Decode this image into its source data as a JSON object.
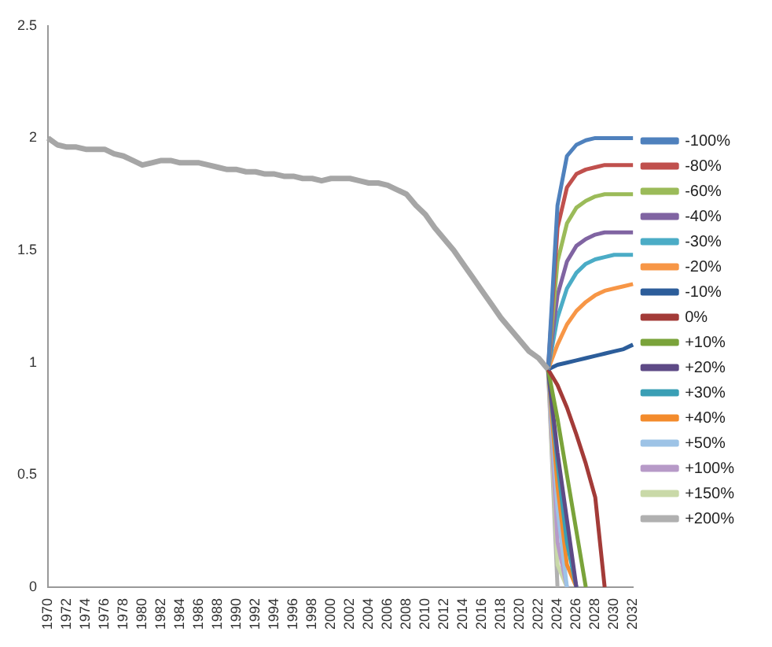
{
  "chart_data": {
    "type": "line",
    "categories": [
      "1970",
      null,
      "1972",
      null,
      "1974",
      null,
      "1976",
      null,
      "1978",
      null,
      "1980",
      null,
      "1982",
      null,
      "1984",
      null,
      "1986",
      null,
      "1988",
      null,
      "1990",
      null,
      "1992",
      null,
      "1994",
      null,
      "1996",
      null,
      "1998",
      null,
      "2000",
      null,
      "2002",
      null,
      "2004",
      null,
      "2006",
      null,
      "2008",
      null,
      "2010",
      null,
      "2012",
      null,
      "2014",
      null,
      "2016",
      null,
      "2018",
      null,
      "2020",
      null,
      "2022",
      null,
      "2024",
      null,
      "2026",
      null,
      "2028",
      null,
      "2030",
      null,
      "2032"
    ],
    "ylim": [
      0,
      2.5
    ],
    "yticks": [
      0,
      0.5,
      1,
      1.5,
      2,
      2.5
    ],
    "grid": false,
    "legend": "right",
    "marker": "none",
    "line_style": "solid",
    "series": [
      {
        "color": "#a6a6a6",
        "values": [
          2.0,
          1.97,
          1.96,
          1.96,
          1.95,
          1.95,
          1.95,
          1.93,
          1.92,
          1.9,
          1.88,
          1.89,
          1.9,
          1.9,
          1.89,
          1.89,
          1.89,
          1.88,
          1.87,
          1.86,
          1.86,
          1.85,
          1.85,
          1.84,
          1.84,
          1.83,
          1.83,
          1.82,
          1.82,
          1.81,
          1.82,
          1.82,
          1.82,
          1.81,
          1.8,
          1.8,
          1.79,
          1.77,
          1.75,
          1.7,
          1.66,
          1.6,
          1.55,
          1.5,
          1.44,
          1.38,
          1.32,
          1.26,
          1.2,
          1.15,
          1.1,
          1.05,
          1.02,
          0.97,
          null,
          null,
          null,
          null,
          null,
          null,
          null,
          null,
          null
        ]
      },
      {
        "name": "-100%",
        "color": "#4f81bd",
        "values": [
          null,
          null,
          null,
          null,
          null,
          null,
          null,
          null,
          null,
          null,
          null,
          null,
          null,
          null,
          null,
          null,
          null,
          null,
          null,
          null,
          null,
          null,
          null,
          null,
          null,
          null,
          null,
          null,
          null,
          null,
          null,
          null,
          null,
          null,
          null,
          null,
          null,
          null,
          null,
          null,
          null,
          null,
          null,
          null,
          null,
          null,
          null,
          null,
          null,
          null,
          null,
          null,
          null,
          0.97,
          1.7,
          1.92,
          1.97,
          1.99,
          2.0,
          2.0,
          2.0,
          2.0,
          2.0
        ]
      },
      {
        "name": "-80%",
        "color": "#c0504d",
        "values": [
          null,
          null,
          null,
          null,
          null,
          null,
          null,
          null,
          null,
          null,
          null,
          null,
          null,
          null,
          null,
          null,
          null,
          null,
          null,
          null,
          null,
          null,
          null,
          null,
          null,
          null,
          null,
          null,
          null,
          null,
          null,
          null,
          null,
          null,
          null,
          null,
          null,
          null,
          null,
          null,
          null,
          null,
          null,
          null,
          null,
          null,
          null,
          null,
          null,
          null,
          null,
          null,
          null,
          0.97,
          1.6,
          1.78,
          1.84,
          1.86,
          1.87,
          1.88,
          1.88,
          1.88,
          1.88
        ]
      },
      {
        "name": "-60%",
        "color": "#9bbb59",
        "values": [
          null,
          null,
          null,
          null,
          null,
          null,
          null,
          null,
          null,
          null,
          null,
          null,
          null,
          null,
          null,
          null,
          null,
          null,
          null,
          null,
          null,
          null,
          null,
          null,
          null,
          null,
          null,
          null,
          null,
          null,
          null,
          null,
          null,
          null,
          null,
          null,
          null,
          null,
          null,
          null,
          null,
          null,
          null,
          null,
          null,
          null,
          null,
          null,
          null,
          null,
          null,
          null,
          null,
          0.97,
          1.45,
          1.62,
          1.69,
          1.72,
          1.74,
          1.75,
          1.75,
          1.75,
          1.75
        ]
      },
      {
        "name": "-40%",
        "color": "#8064a2",
        "values": [
          null,
          null,
          null,
          null,
          null,
          null,
          null,
          null,
          null,
          null,
          null,
          null,
          null,
          null,
          null,
          null,
          null,
          null,
          null,
          null,
          null,
          null,
          null,
          null,
          null,
          null,
          null,
          null,
          null,
          null,
          null,
          null,
          null,
          null,
          null,
          null,
          null,
          null,
          null,
          null,
          null,
          null,
          null,
          null,
          null,
          null,
          null,
          null,
          null,
          null,
          null,
          null,
          null,
          0.97,
          1.3,
          1.45,
          1.52,
          1.55,
          1.57,
          1.58,
          1.58,
          1.58,
          1.58
        ]
      },
      {
        "name": "-30%",
        "color": "#4bacc6",
        "values": [
          null,
          null,
          null,
          null,
          null,
          null,
          null,
          null,
          null,
          null,
          null,
          null,
          null,
          null,
          null,
          null,
          null,
          null,
          null,
          null,
          null,
          null,
          null,
          null,
          null,
          null,
          null,
          null,
          null,
          null,
          null,
          null,
          null,
          null,
          null,
          null,
          null,
          null,
          null,
          null,
          null,
          null,
          null,
          null,
          null,
          null,
          null,
          null,
          null,
          null,
          null,
          null,
          null,
          0.97,
          1.2,
          1.33,
          1.4,
          1.44,
          1.46,
          1.47,
          1.48,
          1.48,
          1.48
        ]
      },
      {
        "name": "-20%",
        "color": "#f79646",
        "values": [
          null,
          null,
          null,
          null,
          null,
          null,
          null,
          null,
          null,
          null,
          null,
          null,
          null,
          null,
          null,
          null,
          null,
          null,
          null,
          null,
          null,
          null,
          null,
          null,
          null,
          null,
          null,
          null,
          null,
          null,
          null,
          null,
          null,
          null,
          null,
          null,
          null,
          null,
          null,
          null,
          null,
          null,
          null,
          null,
          null,
          null,
          null,
          null,
          null,
          null,
          null,
          null,
          null,
          0.97,
          1.08,
          1.17,
          1.23,
          1.27,
          1.3,
          1.32,
          1.33,
          1.34,
          1.35
        ]
      },
      {
        "name": "-10%",
        "color": "#2c5d9a",
        "values": [
          null,
          null,
          null,
          null,
          null,
          null,
          null,
          null,
          null,
          null,
          null,
          null,
          null,
          null,
          null,
          null,
          null,
          null,
          null,
          null,
          null,
          null,
          null,
          null,
          null,
          null,
          null,
          null,
          null,
          null,
          null,
          null,
          null,
          null,
          null,
          null,
          null,
          null,
          null,
          null,
          null,
          null,
          null,
          null,
          null,
          null,
          null,
          null,
          null,
          null,
          null,
          null,
          null,
          0.97,
          0.99,
          1.0,
          1.01,
          1.02,
          1.03,
          1.04,
          1.05,
          1.06,
          1.08
        ]
      },
      {
        "name": "0%",
        "color": "#a33b38",
        "values": [
          null,
          null,
          null,
          null,
          null,
          null,
          null,
          null,
          null,
          null,
          null,
          null,
          null,
          null,
          null,
          null,
          null,
          null,
          null,
          null,
          null,
          null,
          null,
          null,
          null,
          null,
          null,
          null,
          null,
          null,
          null,
          null,
          null,
          null,
          null,
          null,
          null,
          null,
          null,
          null,
          null,
          null,
          null,
          null,
          null,
          null,
          null,
          null,
          null,
          null,
          null,
          null,
          null,
          0.97,
          0.9,
          0.8,
          0.68,
          0.55,
          0.4,
          0,
          null,
          null,
          null
        ]
      },
      {
        "name": "+10%",
        "color": "#7aa33a",
        "values": [
          null,
          null,
          null,
          null,
          null,
          null,
          null,
          null,
          null,
          null,
          null,
          null,
          null,
          null,
          null,
          null,
          null,
          null,
          null,
          null,
          null,
          null,
          null,
          null,
          null,
          null,
          null,
          null,
          null,
          null,
          null,
          null,
          null,
          null,
          null,
          null,
          null,
          null,
          null,
          null,
          null,
          null,
          null,
          null,
          null,
          null,
          null,
          null,
          null,
          null,
          null,
          null,
          null,
          0.97,
          0.75,
          0.5,
          0.25,
          0,
          null,
          null,
          null,
          null,
          null
        ]
      },
      {
        "name": "+20%",
        "color": "#5e4a86",
        "values": [
          null,
          null,
          null,
          null,
          null,
          null,
          null,
          null,
          null,
          null,
          null,
          null,
          null,
          null,
          null,
          null,
          null,
          null,
          null,
          null,
          null,
          null,
          null,
          null,
          null,
          null,
          null,
          null,
          null,
          null,
          null,
          null,
          null,
          null,
          null,
          null,
          null,
          null,
          null,
          null,
          null,
          null,
          null,
          null,
          null,
          null,
          null,
          null,
          null,
          null,
          null,
          null,
          null,
          0.97,
          0.6,
          0.3,
          0,
          null,
          null,
          null,
          null,
          null,
          null
        ]
      },
      {
        "name": "+30%",
        "color": "#3a9fb5",
        "values": [
          null,
          null,
          null,
          null,
          null,
          null,
          null,
          null,
          null,
          null,
          null,
          null,
          null,
          null,
          null,
          null,
          null,
          null,
          null,
          null,
          null,
          null,
          null,
          null,
          null,
          null,
          null,
          null,
          null,
          null,
          null,
          null,
          null,
          null,
          null,
          null,
          null,
          null,
          null,
          null,
          null,
          null,
          null,
          null,
          null,
          null,
          null,
          null,
          null,
          null,
          null,
          null,
          null,
          0.97,
          0.55,
          0.2,
          0,
          null,
          null,
          null,
          null,
          null,
          null
        ]
      },
      {
        "name": "+40%",
        "color": "#f38b2c",
        "values": [
          null,
          null,
          null,
          null,
          null,
          null,
          null,
          null,
          null,
          null,
          null,
          null,
          null,
          null,
          null,
          null,
          null,
          null,
          null,
          null,
          null,
          null,
          null,
          null,
          null,
          null,
          null,
          null,
          null,
          null,
          null,
          null,
          null,
          null,
          null,
          null,
          null,
          null,
          null,
          null,
          null,
          null,
          null,
          null,
          null,
          null,
          null,
          null,
          null,
          null,
          null,
          null,
          null,
          0.97,
          0.45,
          0.1,
          0,
          null,
          null,
          null,
          null,
          null,
          null
        ]
      },
      {
        "name": "+50%",
        "color": "#9dc3e6",
        "values": [
          null,
          null,
          null,
          null,
          null,
          null,
          null,
          null,
          null,
          null,
          null,
          null,
          null,
          null,
          null,
          null,
          null,
          null,
          null,
          null,
          null,
          null,
          null,
          null,
          null,
          null,
          null,
          null,
          null,
          null,
          null,
          null,
          null,
          null,
          null,
          null,
          null,
          null,
          null,
          null,
          null,
          null,
          null,
          null,
          null,
          null,
          null,
          null,
          null,
          null,
          null,
          null,
          null,
          0.97,
          0.35,
          0,
          null,
          null,
          null,
          null,
          null,
          null,
          null
        ]
      },
      {
        "name": "+100%",
        "color": "#b79ac8",
        "values": [
          null,
          null,
          null,
          null,
          null,
          null,
          null,
          null,
          null,
          null,
          null,
          null,
          null,
          null,
          null,
          null,
          null,
          null,
          null,
          null,
          null,
          null,
          null,
          null,
          null,
          null,
          null,
          null,
          null,
          null,
          null,
          null,
          null,
          null,
          null,
          null,
          null,
          null,
          null,
          null,
          null,
          null,
          null,
          null,
          null,
          null,
          null,
          null,
          null,
          null,
          null,
          null,
          null,
          0.97,
          0.2,
          0,
          null,
          null,
          null,
          null,
          null,
          null,
          null
        ]
      },
      {
        "name": "+150%",
        "color": "#c9d9a8",
        "values": [
          null,
          null,
          null,
          null,
          null,
          null,
          null,
          null,
          null,
          null,
          null,
          null,
          null,
          null,
          null,
          null,
          null,
          null,
          null,
          null,
          null,
          null,
          null,
          null,
          null,
          null,
          null,
          null,
          null,
          null,
          null,
          null,
          null,
          null,
          null,
          null,
          null,
          null,
          null,
          null,
          null,
          null,
          null,
          null,
          null,
          null,
          null,
          null,
          null,
          null,
          null,
          null,
          null,
          0.97,
          0.1,
          0,
          null,
          null,
          null,
          null,
          null,
          null,
          null
        ]
      },
      {
        "name": "+200%",
        "color": "#b0b0b0",
        "values": [
          null,
          null,
          null,
          null,
          null,
          null,
          null,
          null,
          null,
          null,
          null,
          null,
          null,
          null,
          null,
          null,
          null,
          null,
          null,
          null,
          null,
          null,
          null,
          null,
          null,
          null,
          null,
          null,
          null,
          null,
          null,
          null,
          null,
          null,
          null,
          null,
          null,
          null,
          null,
          null,
          null,
          null,
          null,
          null,
          null,
          null,
          null,
          null,
          null,
          null,
          null,
          null,
          null,
          0.97,
          0,
          null,
          null,
          null,
          null,
          null,
          null,
          null,
          null
        ]
      }
    ]
  }
}
